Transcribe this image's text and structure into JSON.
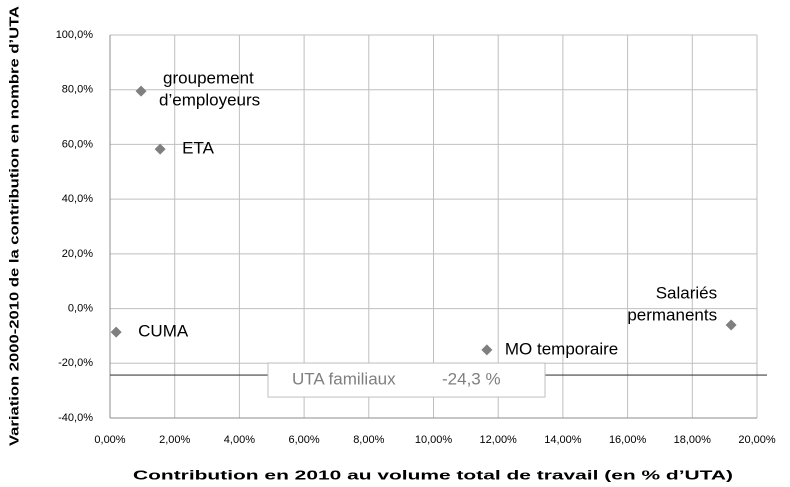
{
  "chart_data": {
    "type": "scatter",
    "x_label": "Contribution en 2010 au volume total de travail (en % d’UTA)",
    "y_label": "Variation 2000-2010 de la contribution en nombre d’UTA",
    "x": [
      0.96,
      1.55,
      0.19,
      11.65,
      19.2
    ],
    "series": [
      {
        "color": "#7f7f7f",
        "values": [
          79.5,
          58.3,
          -8.6,
          -15.1,
          -6.0
        ]
      }
    ],
    "point_labels": [
      [
        "groupement",
        "d’employeurs"
      ],
      [
        "ETA"
      ],
      [
        "CUMA"
      ],
      [
        "MO temporaire"
      ],
      [
        "Salariés",
        "permanents"
      ]
    ],
    "xlim": [
      0,
      20
    ],
    "xticks": [
      {
        "value": 0,
        "label": "0,00%"
      },
      {
        "value": 2,
        "label": "2,00%"
      },
      {
        "value": 4,
        "label": "4,00%"
      },
      {
        "value": 6,
        "label": "6,00%"
      },
      {
        "value": 8,
        "label": "8,00%"
      },
      {
        "value": 10,
        "label": "10,00%"
      },
      {
        "value": 12,
        "label": "12,00%"
      },
      {
        "value": 14,
        "label": "14,00%"
      },
      {
        "value": 16,
        "label": "16,00%"
      },
      {
        "value": 18,
        "label": "18,00%"
      },
      {
        "value": 20,
        "label": "20,00%"
      }
    ],
    "ylim": [
      -40,
      100
    ],
    "yticks": [
      {
        "value": -40,
        "label": "-40,0%"
      },
      {
        "value": -20,
        "label": "-20,0%"
      },
      {
        "value": 0,
        "label": "0,0%"
      },
      {
        "value": 20,
        "label": "20,0%"
      },
      {
        "value": 40,
        "label": "40,0%"
      },
      {
        "value": 60,
        "label": "60,0%"
      },
      {
        "value": 80,
        "label": "80,0%"
      },
      {
        "value": 100,
        "label": "100,0%"
      }
    ],
    "grid": true,
    "reference_line": {
      "value": -24.3,
      "label": "UTA familiaux",
      "value_label": "-24,3 %"
    }
  }
}
